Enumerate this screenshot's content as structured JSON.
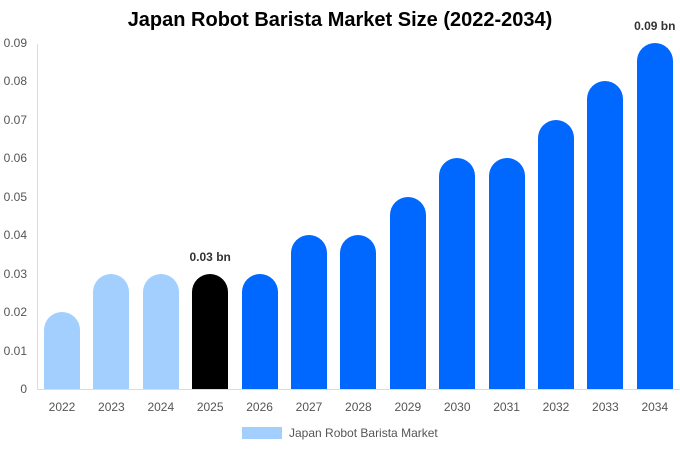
{
  "chart_data": {
    "type": "bar",
    "title": "Japan Robot Barista Market Size (2022-2034)",
    "xlabel": "",
    "ylabel": "",
    "ylim": [
      0,
      0.09
    ],
    "yticks": [
      "0",
      "0.01",
      "0.02",
      "0.03",
      "0.04",
      "0.05",
      "0.06",
      "0.07",
      "0.08",
      "0.09"
    ],
    "categories": [
      "2022",
      "2023",
      "2024",
      "2025",
      "2026",
      "2027",
      "2028",
      "2029",
      "2030",
      "2031",
      "2032",
      "2033",
      "2034"
    ],
    "series": [
      {
        "name": "Japan Robot Barista Market",
        "values": [
          0.02,
          0.03,
          0.03,
          0.03,
          0.03,
          0.04,
          0.04,
          0.05,
          0.06,
          0.06,
          0.07,
          0.08,
          0.09
        ]
      }
    ],
    "bar_colors": [
      "#a3cfff",
      "#a3cfff",
      "#a3cfff",
      "#000000",
      "#0068ff",
      "#0068ff",
      "#0068ff",
      "#0068ff",
      "#0068ff",
      "#0068ff",
      "#0068ff",
      "#0068ff",
      "#0068ff"
    ],
    "annotations": [
      {
        "category": "2025",
        "text": "0.03 bn"
      },
      {
        "category": "2034",
        "text": "0.09 bn"
      }
    ],
    "grid": false,
    "legend_position": "bottom"
  },
  "legend": {
    "label": "Japan Robot Barista Market",
    "color": "#a3cfff"
  }
}
